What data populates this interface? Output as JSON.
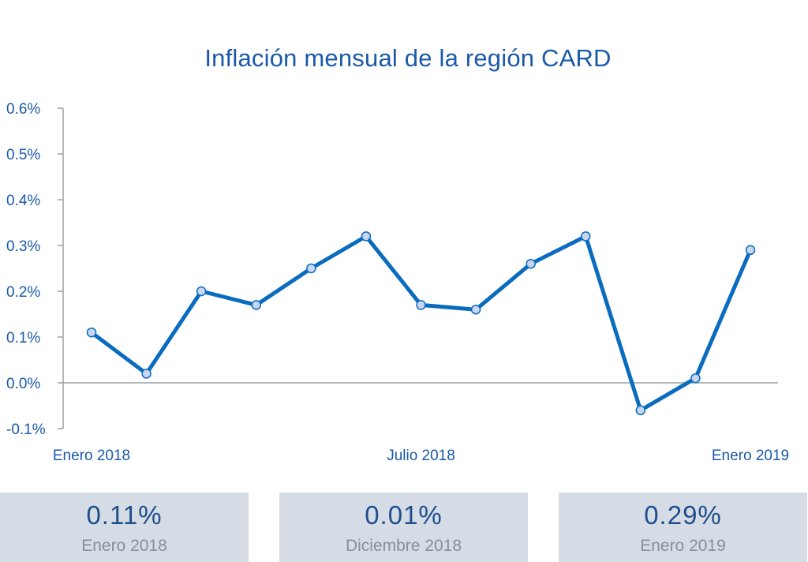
{
  "colors": {
    "line": "#0a6cbf",
    "marker_fill": "#c9d6f2",
    "marker_stroke": "#0a6cbf",
    "axis": "#9aa0a6",
    "text": "#1a5aa8",
    "card_bg": "#d5dce6"
  },
  "chart_data": {
    "type": "line",
    "title": "Inflación mensual de la región CARD",
    "xlabel": "",
    "ylabel": "",
    "ylim": [
      -0.1,
      0.6
    ],
    "y_ticks": [
      "0.6%",
      "0.5%",
      "0.4%",
      "0.3%",
      "0.2%",
      "0.1%",
      "0.0%",
      "-0.1%"
    ],
    "y_tick_values": [
      0.6,
      0.5,
      0.4,
      0.3,
      0.2,
      0.1,
      0.0,
      -0.1
    ],
    "x_tick_labels": [
      {
        "label": "Enero 2018",
        "index": 0
      },
      {
        "label": "Julio 2018",
        "index": 6
      },
      {
        "label": "Enero 2019",
        "index": 12
      }
    ],
    "grid": false,
    "series": [
      {
        "values": [
          0.11,
          0.02,
          0.2,
          0.17,
          0.25,
          0.32,
          0.17,
          0.16,
          0.26,
          0.32,
          -0.06,
          0.01,
          0.29
        ]
      }
    ]
  },
  "cards": [
    {
      "value": "0.11%",
      "label": "Enero 2018"
    },
    {
      "value": "0.01%",
      "label": "Diciembre 2018"
    },
    {
      "value": "0.29%",
      "label": "Enero 2019"
    }
  ]
}
